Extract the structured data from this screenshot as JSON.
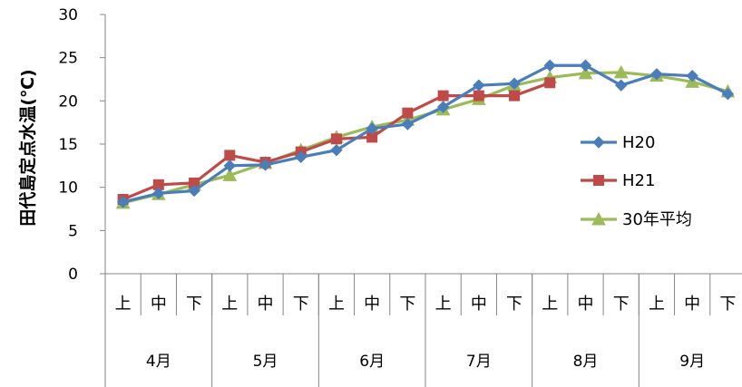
{
  "chart_data": {
    "type": "line",
    "ylabel": "田代島定点水温(℃)",
    "ylim": [
      0,
      30
    ],
    "yticks": [
      "0",
      "5",
      "10",
      "15",
      "20",
      "25",
      "30"
    ],
    "categories": [
      "上",
      "中",
      "下",
      "上",
      "中",
      "下",
      "上",
      "中",
      "下",
      "上",
      "中",
      "下",
      "上",
      "中",
      "下",
      "上",
      "中",
      "下"
    ],
    "months": [
      "4月",
      "5月",
      "6月",
      "7月",
      "8月",
      "9月"
    ],
    "series": [
      {
        "name": "H20",
        "color": "#4a7ebb",
        "marker": "diamond",
        "values": [
          8.3,
          9.3,
          9.6,
          12.5,
          12.6,
          13.5,
          14.3,
          16.8,
          17.3,
          19.3,
          21.8,
          22.0,
          24.1,
          24.1,
          21.8,
          23.1,
          22.9,
          20.8
        ]
      },
      {
        "name": "H21",
        "color": "#be4b48",
        "marker": "square",
        "values": [
          8.6,
          10.3,
          10.5,
          13.7,
          12.9,
          14.1,
          15.6,
          15.8,
          18.6,
          20.6,
          20.6,
          20.6,
          22.1,
          null,
          null,
          null,
          null,
          null
        ]
      },
      {
        "name": "30年平均",
        "color": "#9bbb59",
        "marker": "triangle",
        "values": [
          8.2,
          9.2,
          10.3,
          11.4,
          12.8,
          14.3,
          15.8,
          17.0,
          17.8,
          19.0,
          20.2,
          21.8,
          22.7,
          23.2,
          23.3,
          22.9,
          22.2,
          21.1
        ]
      }
    ],
    "legend_position": "right",
    "grid": false
  }
}
